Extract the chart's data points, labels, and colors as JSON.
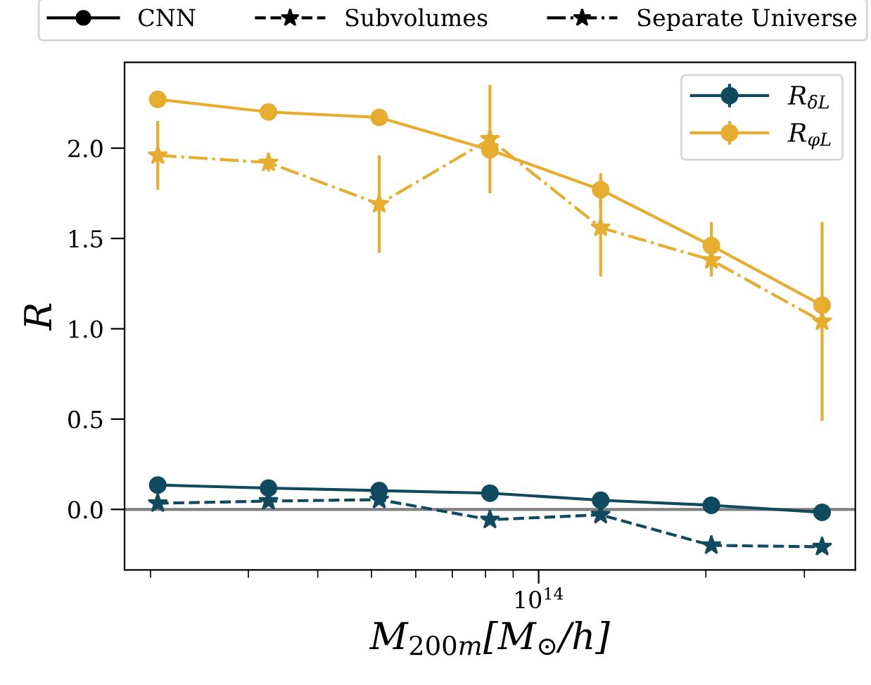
{
  "chart_data": {
    "type": "line",
    "xlabel": "M$_{200m}$[M$_{⊙}$/h]",
    "ylabel": "R",
    "series": [
      {
        "name": "R$_{δL}$",
        "color": "#0f4a5e",
        "marker": "circle",
        "line_style": "solid",
        "values": [
          0.135,
          0.118,
          0.104,
          0.09,
          0.051,
          0.023,
          -0.016
        ]
      },
      {
        "name": "R$_{φL}$",
        "color": "#e6ad2e",
        "marker": "circle",
        "line_style": "solid",
        "values": [
          2.27,
          2.2,
          2.17,
          1.99,
          1.77,
          1.46,
          1.13
        ],
        "errors": [
          null,
          null,
          null,
          null,
          0.09,
          0.13,
          null
        ]
      },
      {
        "color": "#0f4a5e",
        "marker": "star",
        "line_style": "dashed",
        "values": [
          0.034,
          0.046,
          0.054,
          -0.057,
          -0.03,
          -0.199,
          -0.207
        ]
      },
      {
        "color": "#e6ad2e",
        "marker": "star",
        "line_style": "dashdot",
        "values": [
          1.96,
          1.92,
          1.69,
          2.05,
          1.56,
          1.38,
          1.04
        ],
        "errors": [
          0.19,
          0.05,
          0.27,
          0.3,
          0.27,
          0.09,
          0.55
        ]
      }
    ],
    "annotations": [
      "CNN",
      "Subvolumes",
      "Separate Universe",
      "10$^{14}$"
    ],
    "categories": [
      null,
      null,
      null,
      null,
      null,
      null,
      null
    ],
    "ylim": [
      -0.335,
      2.475
    ],
    "yticks": [
      {
        "value": 0,
        "label": "0.0"
      },
      {
        "value": 0.5,
        "label": "0.5"
      },
      {
        "value": 1,
        "label": "1.0"
      },
      {
        "value": 1.5,
        "label": "1.5"
      },
      {
        "value": 2,
        "label": "2.0"
      }
    ],
    "ref_lines": [
      {
        "axis": "y",
        "value": 0,
        "color": "#808080"
      }
    ],
    "grid": false,
    "legend": "top right"
  }
}
